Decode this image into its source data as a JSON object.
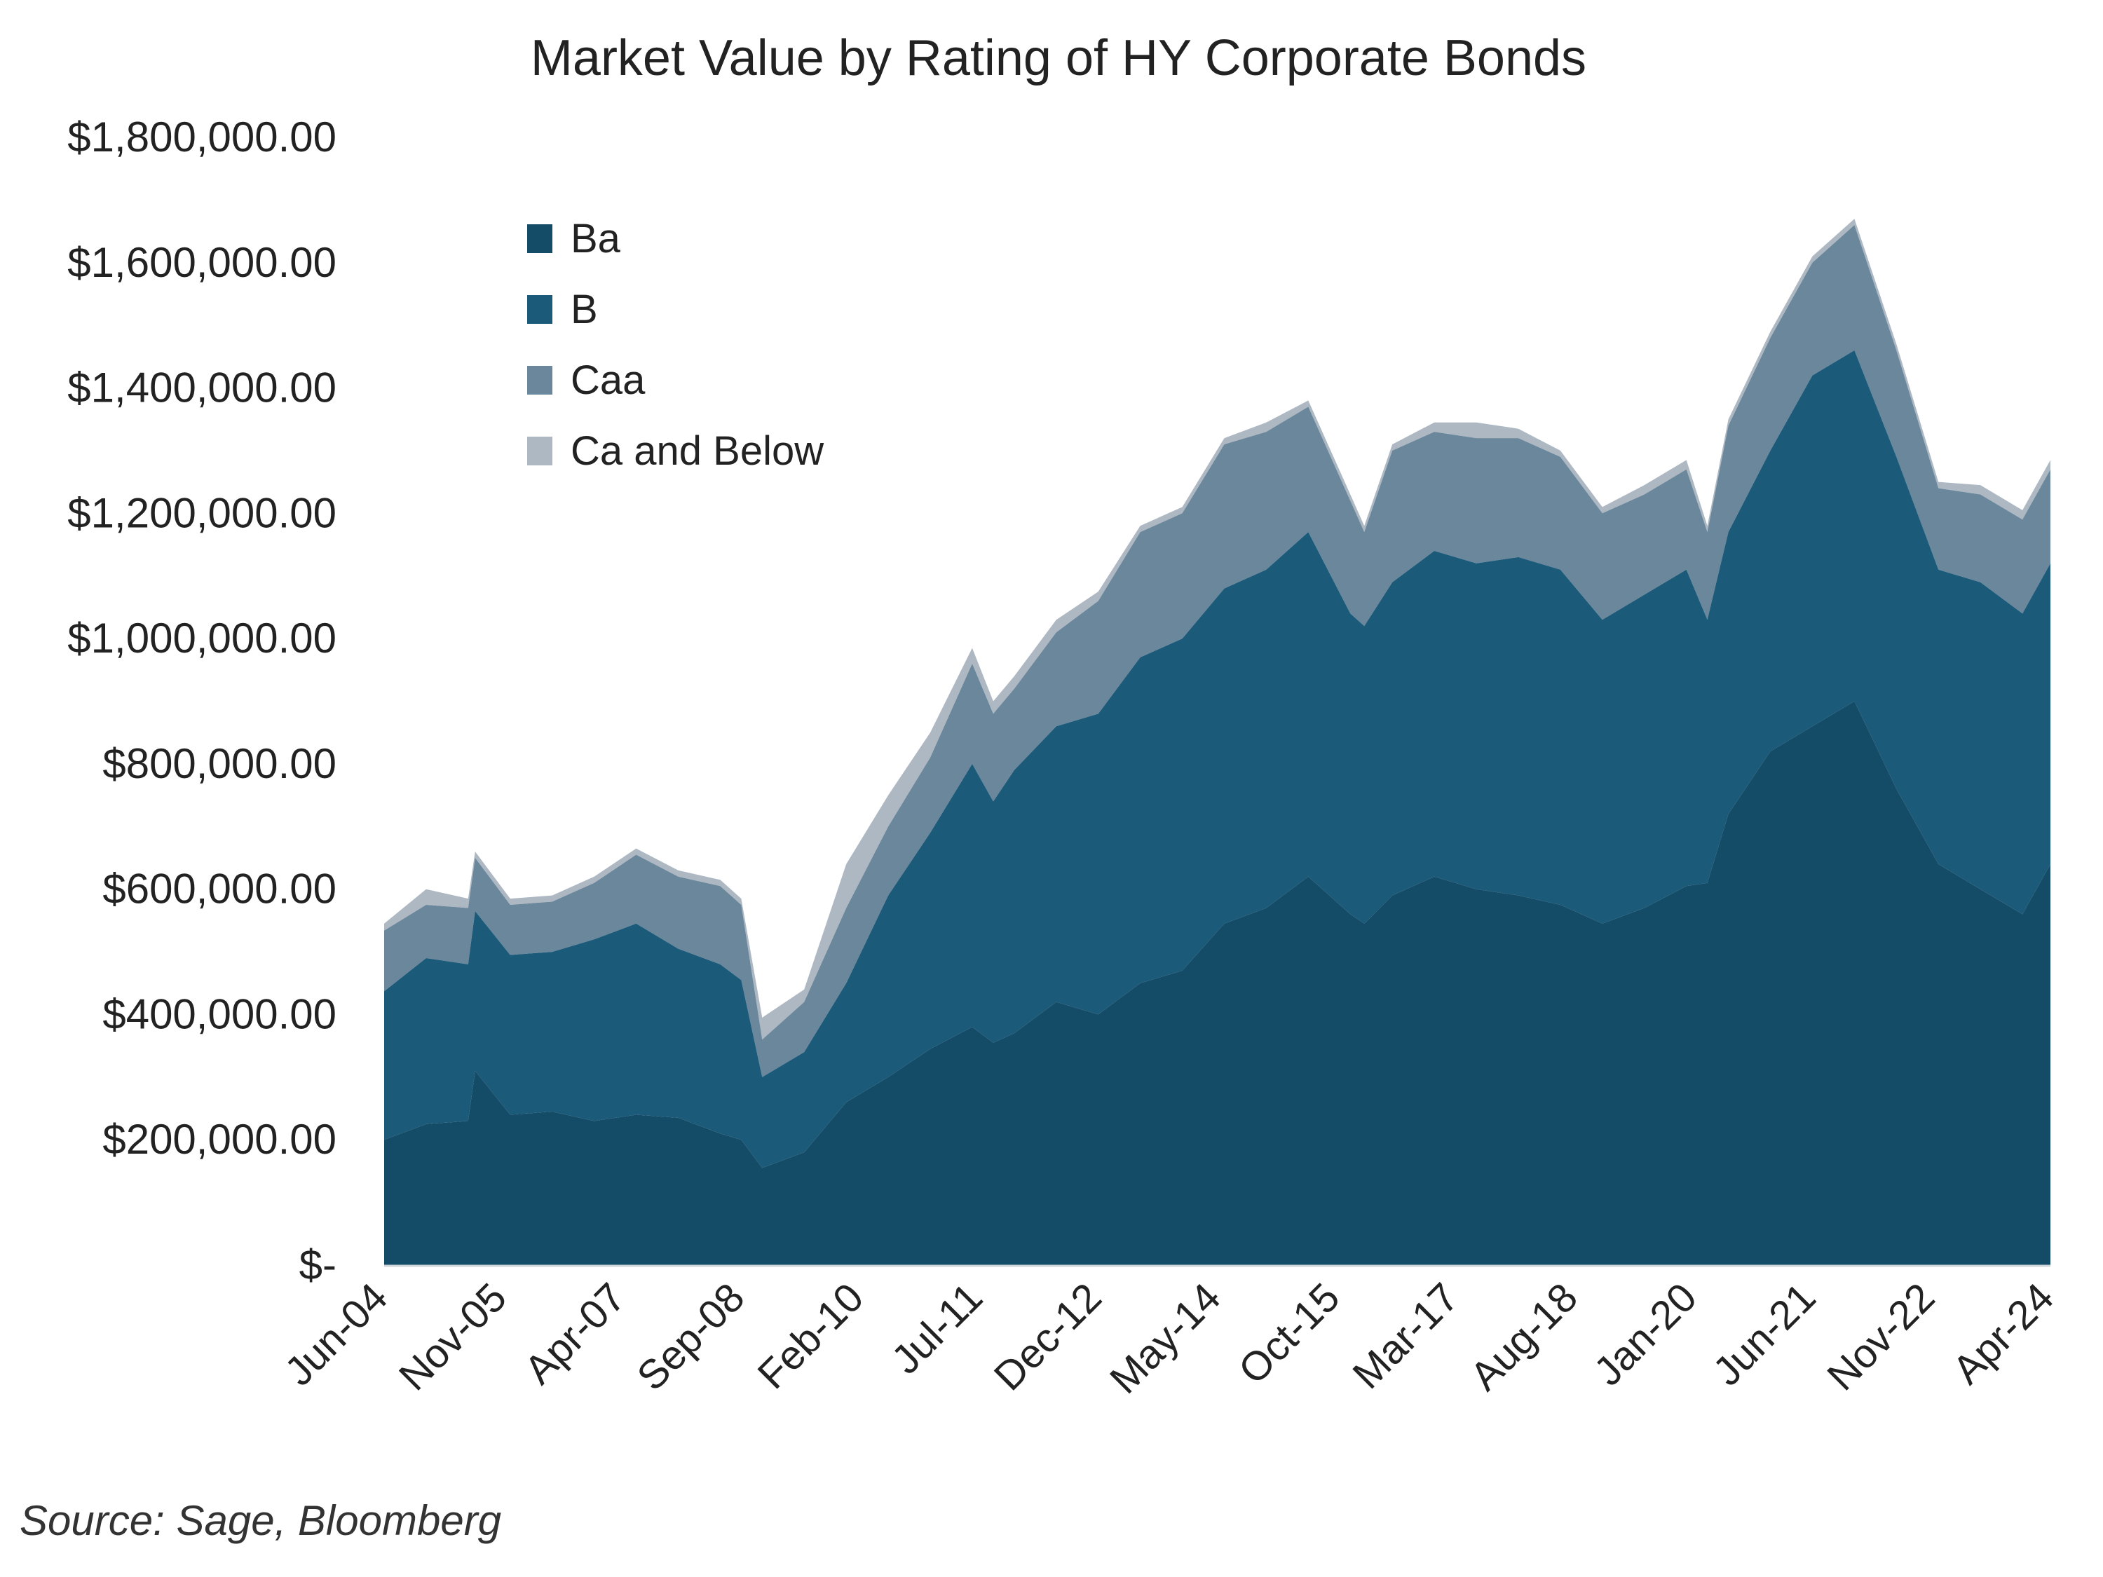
{
  "chart_data": {
    "type": "area",
    "stacked": true,
    "title": "Market Value by Rating of HY Corporate Bonds",
    "xlabel": "",
    "ylabel": "",
    "ylim": [
      0,
      1800000
    ],
    "yticks": [
      0,
      200000,
      400000,
      600000,
      800000,
      1000000,
      1200000,
      1400000,
      1600000,
      1800000
    ],
    "ytick_labels": [
      "$-",
      "$200,000.00",
      "$400,000.00",
      "$600,000.00",
      "$800,000.00",
      "$1,000,000.00",
      "$1,200,000.00",
      "$1,400,000.00",
      "$1,600,000.00",
      "$1,800,000.00"
    ],
    "xtick_labels": [
      "Jun-04",
      "Nov-05",
      "Apr-07",
      "Sep-08",
      "Feb-10",
      "Jul-11",
      "Dec-12",
      "May-14",
      "Oct-15",
      "Mar-17",
      "Aug-18",
      "Jan-20",
      "Jun-21",
      "Nov-22",
      "Apr-24"
    ],
    "grid": false,
    "legend": "top-left",
    "x": [
      "Jun-04",
      "Dec-04",
      "Jun-05",
      "Jul-05",
      "Dec-05",
      "Jun-06",
      "Dec-06",
      "Jun-07",
      "Dec-07",
      "Jun-08",
      "Sep-08",
      "Dec-08",
      "Jun-09",
      "Dec-09",
      "Jun-10",
      "Dec-10",
      "Jun-11",
      "Sep-11",
      "Dec-11",
      "Jun-12",
      "Dec-12",
      "Jun-13",
      "Dec-13",
      "Jun-14",
      "Dec-14",
      "Jun-15",
      "Dec-15",
      "Feb-16",
      "Jun-16",
      "Dec-16",
      "Jun-17",
      "Dec-17",
      "Jun-18",
      "Dec-18",
      "Jun-19",
      "Dec-19",
      "Mar-20",
      "Jun-20",
      "Dec-20",
      "Jun-21",
      "Dec-21",
      "Jun-22",
      "Dec-22",
      "Jun-23",
      "Dec-23",
      "Apr-24"
    ],
    "series": [
      {
        "name": "Ba",
        "color": "#144b67",
        "values": [
          200000,
          225000,
          230000,
          310000,
          240000,
          245000,
          230000,
          240000,
          235000,
          210000,
          200000,
          155000,
          180000,
          260000,
          300000,
          345000,
          380000,
          355000,
          370000,
          420000,
          400000,
          450000,
          470000,
          545000,
          570000,
          620000,
          560000,
          545000,
          590000,
          620000,
          600000,
          590000,
          575000,
          545000,
          570000,
          605000,
          610000,
          720000,
          820000,
          860000,
          900000,
          760000,
          640000,
          600000,
          560000,
          640000
        ]
      },
      {
        "name": "B",
        "color": "#1c5a7a",
        "values": [
          237000,
          265000,
          250000,
          255000,
          255000,
          255000,
          290000,
          305000,
          270000,
          270000,
          255000,
          145000,
          160000,
          190000,
          290000,
          345000,
          420000,
          385000,
          420000,
          440000,
          480000,
          520000,
          530000,
          535000,
          540000,
          550000,
          480000,
          475000,
          500000,
          520000,
          520000,
          540000,
          535000,
          485000,
          500000,
          505000,
          420000,
          450000,
          480000,
          560000,
          560000,
          530000,
          470000,
          490000,
          480000,
          480000
        ]
      },
      {
        "name": "Caa",
        "color": "#6b879c",
        "values": [
          97000,
          85000,
          90000,
          85000,
          80000,
          80000,
          90000,
          110000,
          115000,
          125000,
          120000,
          60000,
          80000,
          120000,
          110000,
          120000,
          160000,
          140000,
          130000,
          150000,
          180000,
          200000,
          200000,
          230000,
          220000,
          200000,
          180000,
          150000,
          210000,
          190000,
          200000,
          190000,
          180000,
          170000,
          160000,
          160000,
          140000,
          170000,
          180000,
          180000,
          200000,
          170000,
          130000,
          140000,
          150000,
          150000
        ]
      },
      {
        "name": "Ca and Below",
        "color": "#adb8c3",
        "values": [
          11000,
          25000,
          15000,
          10000,
          10000,
          10000,
          10000,
          10000,
          10000,
          10000,
          10000,
          35000,
          20000,
          70000,
          50000,
          40000,
          25000,
          20000,
          20000,
          20000,
          15000,
          10000,
          10000,
          10000,
          15000,
          10000,
          10000,
          10000,
          10000,
          15000,
          25000,
          15000,
          10000,
          10000,
          15000,
          15000,
          10000,
          10000,
          10000,
          10000,
          10000,
          10000,
          10000,
          15000,
          15000,
          15000
        ]
      }
    ],
    "source": "Source: Sage, Bloomberg"
  }
}
